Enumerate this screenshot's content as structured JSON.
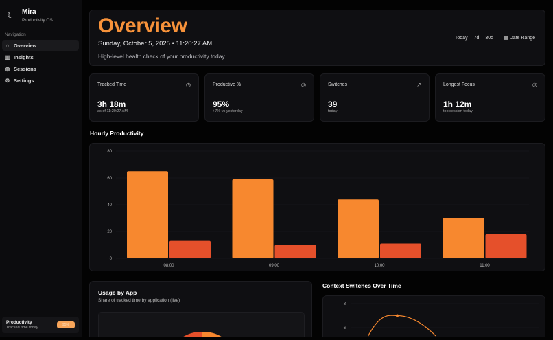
{
  "brand": {
    "name": "Mira",
    "subtitle": "Productivity OS",
    "icon": "moon-icon"
  },
  "sidebar": {
    "section_label": "Navigation",
    "items": [
      {
        "label": "Overview",
        "icon": "home-icon",
        "active": true
      },
      {
        "label": "Insights",
        "icon": "bar-chart-icon"
      },
      {
        "label": "Sessions",
        "icon": "circle-icon"
      },
      {
        "label": "Settings",
        "icon": "gear-icon"
      }
    ],
    "footer": {
      "title": "Productivity",
      "subtitle": "Tracked time today",
      "badge": "95%"
    }
  },
  "hero": {
    "title": "Overview",
    "date": "Sunday, October 5, 2025 • 11:20:27 AM",
    "subtitle": "High-level health check of your productivity today",
    "ranges": [
      "Today",
      "7d",
      "30d"
    ],
    "date_range_label": "Date Range"
  },
  "stats": [
    {
      "title": "Tracked Time",
      "value": "3h 18m",
      "sub": "as of 11:20:27 AM",
      "icon": "clock-icon"
    },
    {
      "title": "Productive %",
      "value": "95%",
      "sub": "+7% vs yesterday",
      "icon": "target-icon"
    },
    {
      "title": "Switches",
      "value": "39",
      "sub": "today",
      "icon": "trending-up-icon"
    },
    {
      "title": "Longest Focus",
      "value": "1h 12m",
      "sub": "top session today",
      "icon": "target-icon"
    }
  ],
  "sections": {
    "hourly": "Hourly Productivity",
    "usage_title": "Usage by App",
    "usage_sub": "Share of tracked time by application (live)",
    "switches": "Context Switches Over Time"
  },
  "colors": {
    "accent": "#f7882f",
    "secondary": "#e5502b"
  },
  "chart_data": [
    {
      "type": "bar",
      "title": "Hourly Productivity",
      "categories": [
        "08:00",
        "09:00",
        "10:00",
        "11:00"
      ],
      "series": [
        {
          "values": [
            65,
            59,
            44,
            30
          ],
          "color": "#f7882f"
        },
        {
          "values": [
            13,
            10,
            11,
            18
          ],
          "color": "#e5502b"
        }
      ],
      "ylim": [
        0,
        80
      ],
      "yticks": [
        0,
        20,
        40,
        60,
        80
      ],
      "grid": true
    },
    {
      "type": "line",
      "title": "Context Switches Over Time",
      "yticks": [
        6,
        8
      ],
      "values": [
        4,
        7,
        4
      ],
      "color": "#f7882f",
      "grid": true
    },
    {
      "type": "pie",
      "title": "Usage by App",
      "colors": [
        "#e5502b",
        "#f7882f"
      ]
    }
  ]
}
